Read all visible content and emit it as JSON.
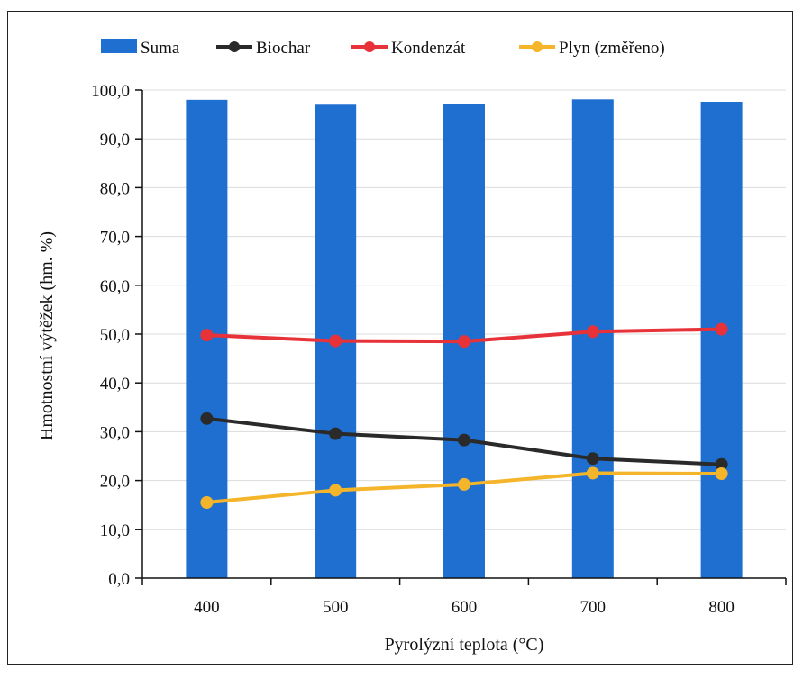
{
  "chart_data": {
    "type": "bar+line",
    "categories": [
      "400",
      "500",
      "600",
      "700",
      "800"
    ],
    "xlabel": "Pyrolýzní teplota (°C)",
    "ylabel": "Hmotnostní výtěžek (hm. %)",
    "ylim": [
      0,
      100
    ],
    "yticks": [
      "0,0",
      "10,0",
      "20,0",
      "30,0",
      "40,0",
      "50,0",
      "60,0",
      "70,0",
      "80,0",
      "90,0",
      "100,0"
    ],
    "grid": true,
    "legend_position": "top",
    "series": [
      {
        "name": "Suma",
        "type": "bar",
        "color": "#1f6fd0",
        "values": [
          98.0,
          97.0,
          97.2,
          98.1,
          97.6
        ]
      },
      {
        "name": "Biochar",
        "type": "line",
        "color": "#2a2a2a",
        "values": [
          32.7,
          29.6,
          28.3,
          24.5,
          23.3
        ]
      },
      {
        "name": "Kondenzát",
        "type": "line",
        "color": "#e8323a",
        "values": [
          49.8,
          48.6,
          48.5,
          50.5,
          51.0
        ]
      },
      {
        "name": "Plyn (změřeno)",
        "type": "line",
        "color": "#f5b52b",
        "values": [
          15.5,
          18.0,
          19.2,
          21.5,
          21.4
        ]
      }
    ]
  }
}
